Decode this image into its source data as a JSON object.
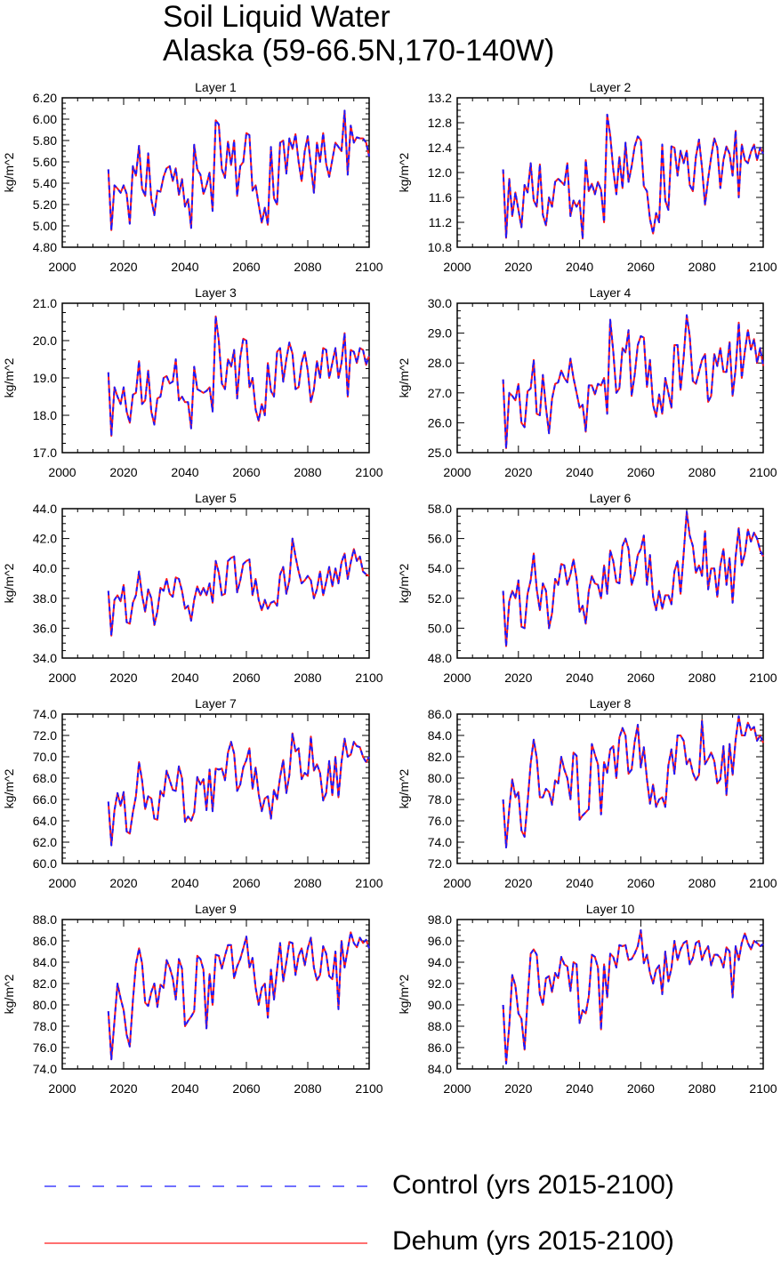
{
  "title": {
    "line1": "Soil Liquid Water",
    "line2": "Alaska (59-66.5N,170-140W)"
  },
  "colors": {
    "control": "#1a1aff",
    "dehum": "#ff1a1a",
    "axis": "#000000"
  },
  "legend": {
    "control_label": "Control (yrs 2015-2100)",
    "dehum_label": "Dehum (yrs 2015-2100)",
    "control_style": "dashed",
    "dehum_style": "solid"
  },
  "chart_data": [
    {
      "type": "line",
      "title": "Layer 1",
      "ylabel": "kg/m^2",
      "xlim": [
        2000,
        2100
      ],
      "ylim": [
        4.8,
        6.2
      ],
      "xticks": [
        "2000",
        "2020",
        "2040",
        "2060",
        "2080",
        "2100"
      ],
      "yticks": [
        "4.80",
        "5.00",
        "5.20",
        "5.40",
        "5.60",
        "5.80",
        "6.00",
        "6.20"
      ],
      "x_start": 2015,
      "series": [
        {
          "name": "Control (yrs 2015-2100)",
          "style": "dashed"
        },
        {
          "name": "Dehum (yrs 2015-2100)",
          "style": "solid"
        }
      ],
      "values": [
        5.53,
        4.96,
        5.38,
        5.35,
        5.31,
        5.38,
        5.3,
        5.02,
        5.56,
        5.47,
        5.75,
        5.35,
        5.28,
        5.68,
        5.25,
        5.1,
        5.33,
        5.32,
        5.46,
        5.54,
        5.56,
        5.42,
        5.54,
        5.29,
        5.44,
        5.18,
        5.25,
        4.98,
        5.76,
        5.53,
        5.48,
        5.3,
        5.38,
        5.5,
        5.14,
        5.99,
        5.95,
        5.53,
        5.45,
        5.79,
        5.57,
        5.8,
        5.28,
        5.56,
        5.6,
        5.87,
        5.85,
        5.33,
        5.38,
        5.2,
        5.03,
        5.17,
        5.01,
        5.74,
        5.26,
        5.2,
        5.78,
        5.8,
        5.49,
        5.82,
        5.72,
        5.86,
        5.6,
        5.42,
        5.7,
        5.84,
        5.56,
        5.31,
        5.78,
        5.6,
        5.87,
        5.58,
        5.46,
        5.62,
        5.78,
        5.74,
        5.7,
        6.08,
        5.48,
        5.94,
        5.78,
        5.83,
        5.82,
        5.82,
        5.78,
        5.65
      ]
    },
    {
      "type": "line",
      "title": "Layer 2",
      "ylabel": "kg/m^2",
      "xlim": [
        2000,
        2100
      ],
      "ylim": [
        10.8,
        13.2
      ],
      "xticks": [
        "2000",
        "2020",
        "2040",
        "2060",
        "2080",
        "2100"
      ],
      "yticks": [
        "10.8",
        "11.2",
        "11.6",
        "12.0",
        "12.4",
        "12.8",
        "13.2"
      ],
      "x_start": 2015,
      "series": [
        {
          "name": "Control (yrs 2015-2100)",
          "style": "dashed"
        },
        {
          "name": "Dehum (yrs 2015-2100)",
          "style": "solid"
        }
      ],
      "values": [
        12.05,
        10.95,
        11.9,
        11.3,
        11.68,
        11.4,
        11.12,
        11.8,
        11.68,
        12.15,
        11.55,
        11.45,
        12.13,
        11.32,
        11.15,
        11.6,
        11.45,
        11.85,
        11.9,
        11.85,
        11.8,
        12.15,
        11.3,
        11.55,
        11.45,
        11.55,
        10.94,
        12.2,
        11.7,
        11.82,
        11.65,
        11.85,
        11.72,
        11.2,
        12.93,
        12.6,
        12.05,
        11.65,
        12.25,
        11.75,
        12.48,
        11.85,
        12.1,
        12.42,
        12.58,
        12.52,
        11.78,
        11.7,
        11.25,
        11.02,
        11.35,
        11.2,
        12.45,
        11.55,
        11.4,
        12.42,
        12.4,
        11.95,
        12.35,
        12.15,
        12.35,
        11.8,
        11.7,
        12.25,
        12.53,
        12.08,
        11.48,
        11.9,
        12.25,
        12.55,
        12.4,
        11.75,
        12.2,
        12.42,
        12.3,
        11.95,
        12.67,
        11.6,
        12.45,
        12.2,
        12.15,
        12.33,
        12.45,
        12.2,
        12.4,
        12.3
      ]
    },
    {
      "type": "line",
      "title": "Layer 3",
      "ylabel": "kg/m^2",
      "xlim": [
        2000,
        2100
      ],
      "ylim": [
        17.0,
        21.0
      ],
      "xticks": [
        "2000",
        "2020",
        "2040",
        "2060",
        "2080",
        "2100"
      ],
      "yticks": [
        "17.0",
        "18.0",
        "19.0",
        "20.0",
        "21.0"
      ],
      "x_start": 2015,
      "series": [
        {
          "name": "Control (yrs 2015-2100)",
          "style": "dashed"
        },
        {
          "name": "Dehum (yrs 2015-2100)",
          "style": "solid"
        }
      ],
      "values": [
        19.15,
        17.45,
        18.75,
        18.5,
        18.3,
        18.75,
        18.1,
        17.8,
        18.55,
        18.6,
        19.45,
        18.3,
        18.4,
        19.2,
        18.1,
        17.75,
        18.45,
        18.5,
        19.0,
        19.05,
        18.85,
        18.9,
        19.5,
        18.4,
        18.5,
        18.35,
        18.35,
        17.65,
        19.3,
        18.7,
        18.65,
        18.6,
        18.65,
        18.75,
        18.1,
        20.65,
        20.0,
        18.85,
        18.7,
        19.5,
        19.3,
        19.75,
        18.45,
        19.55,
        20.05,
        20.0,
        18.75,
        19.0,
        18.15,
        17.85,
        18.3,
        18.0,
        19.4,
        18.65,
        18.5,
        19.7,
        19.8,
        18.9,
        19.5,
        19.95,
        19.65,
        18.7,
        18.75,
        19.4,
        19.7,
        19.2,
        18.35,
        18.7,
        19.45,
        19.0,
        19.8,
        19.75,
        19.0,
        19.4,
        19.8,
        19.0,
        19.4,
        20.2,
        18.5,
        19.75,
        19.7,
        19.4,
        19.8,
        19.75,
        19.35,
        19.6
      ]
    },
    {
      "type": "line",
      "title": "Layer 4",
      "ylabel": "kg/m^2",
      "xlim": [
        2000,
        2100
      ],
      "ylim": [
        25.0,
        30.0
      ],
      "xticks": [
        "2000",
        "2020",
        "2040",
        "2060",
        "2080",
        "2100"
      ],
      "yticks": [
        "25.0",
        "26.0",
        "27.0",
        "28.0",
        "29.0",
        "30.0"
      ],
      "x_start": 2015,
      "series": [
        {
          "name": "Control (yrs 2015-2100)",
          "style": "dashed"
        },
        {
          "name": "Dehum (yrs 2015-2100)",
          "style": "solid"
        }
      ],
      "values": [
        27.45,
        25.15,
        27.0,
        26.9,
        26.75,
        27.3,
        26.0,
        25.85,
        27.05,
        27.15,
        28.1,
        26.3,
        26.25,
        27.6,
        26.5,
        25.65,
        26.8,
        27.3,
        27.35,
        27.75,
        27.5,
        27.35,
        28.15,
        27.5,
        27.0,
        26.5,
        26.6,
        25.7,
        27.25,
        27.25,
        26.95,
        27.3,
        27.25,
        27.5,
        26.3,
        29.45,
        28.4,
        27.0,
        27.15,
        28.5,
        28.35,
        29.1,
        26.9,
        27.6,
        28.6,
        28.9,
        28.85,
        27.2,
        28.1,
        26.6,
        26.2,
        26.95,
        26.3,
        27.5,
        27.0,
        26.5,
        28.6,
        28.6,
        27.1,
        28.2,
        29.6,
        28.9,
        27.4,
        27.3,
        27.7,
        28.1,
        28.3,
        26.7,
        26.9,
        28.3,
        27.9,
        28.5,
        27.7,
        27.7,
        28.7,
        26.9,
        27.8,
        29.35,
        27.5,
        28.4,
        29.1,
        28.45,
        28.8,
        28.0,
        28.5,
        27.9
      ]
    },
    {
      "type": "line",
      "title": "Layer 5",
      "ylabel": "kg/m^2",
      "xlim": [
        2000,
        2100
      ],
      "ylim": [
        34.0,
        44.0
      ],
      "xticks": [
        "2000",
        "2020",
        "2040",
        "2060",
        "2080",
        "2100"
      ],
      "yticks": [
        "34.0",
        "36.0",
        "38.0",
        "40.0",
        "42.0",
        "44.0"
      ],
      "x_start": 2015,
      "series": [
        {
          "name": "Control (yrs 2015-2100)",
          "style": "dashed"
        },
        {
          "name": "Dehum (yrs 2015-2100)",
          "style": "solid"
        }
      ],
      "values": [
        38.5,
        35.5,
        37.9,
        38.2,
        37.8,
        38.9,
        36.4,
        36.3,
        37.7,
        38.2,
        39.8,
        38.2,
        37.1,
        38.6,
        38.0,
        36.2,
        37.1,
        38.7,
        38.5,
        39.3,
        38.3,
        38.1,
        39.4,
        39.3,
        38.5,
        37.3,
        37.5,
        36.5,
        37.9,
        38.8,
        38.2,
        38.7,
        38.2,
        39.0,
        37.7,
        40.5,
        39.7,
        38.2,
        38.3,
        40.5,
        40.7,
        40.8,
        38.4,
        39.2,
        40.3,
        40.5,
        40.6,
        38.2,
        39.3,
        37.9,
        37.2,
        37.9,
        37.3,
        37.7,
        37.8,
        37.5,
        39.6,
        40.1,
        38.3,
        39.2,
        42.0,
        40.8,
        39.8,
        39.0,
        39.2,
        39.5,
        39.2,
        38.0,
        38.6,
        39.8,
        38.2,
        39.1,
        40.1,
        38.8,
        40.0,
        39.0,
        40.4,
        41.0,
        39.3,
        40.4,
        41.3,
        40.5,
        40.8,
        39.8,
        39.6,
        39.5
      ]
    },
    {
      "type": "line",
      "title": "Layer 6",
      "ylabel": "kg/m^2",
      "xlim": [
        2000,
        2100
      ],
      "ylim": [
        48.0,
        58.0
      ],
      "xticks": [
        "2000",
        "2020",
        "2040",
        "2060",
        "2080",
        "2100"
      ],
      "yticks": [
        "48.0",
        "50.0",
        "52.0",
        "54.0",
        "56.0",
        "58.0"
      ],
      "x_start": 2015,
      "series": [
        {
          "name": "Control (yrs 2015-2100)",
          "style": "dashed"
        },
        {
          "name": "Dehum (yrs 2015-2100)",
          "style": "solid"
        }
      ],
      "values": [
        52.5,
        48.8,
        51.8,
        52.5,
        52.0,
        53.2,
        50.1,
        50.0,
        52.3,
        53.2,
        55.0,
        52.6,
        51.2,
        53.0,
        52.5,
        50.0,
        51.0,
        53.3,
        52.9,
        54.3,
        54.2,
        52.9,
        53.6,
        54.6,
        53.3,
        51.1,
        51.5,
        50.3,
        52.5,
        53.5,
        53.0,
        52.9,
        52.0,
        54.2,
        52.3,
        55.2,
        54.5,
        53.1,
        53.0,
        55.5,
        56.0,
        55.3,
        52.9,
        53.6,
        54.9,
        55.3,
        56.2,
        52.9,
        54.9,
        52.1,
        51.2,
        52.5,
        51.3,
        52.2,
        52.2,
        51.6,
        53.8,
        54.5,
        52.3,
        55.0,
        57.8,
        56.2,
        55.5,
        53.7,
        54.2,
        53.5,
        56.5,
        52.6,
        54.0,
        54.0,
        52.1,
        54.2,
        55.3,
        52.9,
        54.7,
        51.7,
        54.8,
        56.7,
        54.2,
        55.0,
        56.6,
        55.8,
        56.4,
        56.0,
        55.2,
        54.8
      ]
    },
    {
      "type": "line",
      "title": "Layer 7",
      "ylabel": "kg/m^2",
      "xlim": [
        2000,
        2100
      ],
      "ylim": [
        60.0,
        74.0
      ],
      "xticks": [
        "2000",
        "2020",
        "2040",
        "2060",
        "2080",
        "2100"
      ],
      "yticks": [
        "60.0",
        "62.0",
        "64.0",
        "66.0",
        "68.0",
        "70.0",
        "72.0",
        "74.0"
      ],
      "x_start": 2015,
      "series": [
        {
          "name": "Control (yrs 2015-2100)",
          "style": "dashed"
        },
        {
          "name": "Dehum (yrs 2015-2100)",
          "style": "solid"
        }
      ],
      "values": [
        65.8,
        61.7,
        65.0,
        66.6,
        65.4,
        66.7,
        63.0,
        62.8,
        64.8,
        66.3,
        69.5,
        67.8,
        65.1,
        66.3,
        66.1,
        64.2,
        64.1,
        66.8,
        66.3,
        68.7,
        67.8,
        66.9,
        66.8,
        69.1,
        68.0,
        63.9,
        64.4,
        64.0,
        64.8,
        68.1,
        67.4,
        67.9,
        65.0,
        68.8,
        64.9,
        68.9,
        68.8,
        68.9,
        67.8,
        70.4,
        71.4,
        70.3,
        66.8,
        67.4,
        69.0,
        69.7,
        70.8,
        67.0,
        69.0,
        66.5,
        64.9,
        66.1,
        66.3,
        64.2,
        66.9,
        66.0,
        68.1,
        69.7,
        66.6,
        68.3,
        72.2,
        70.5,
        70.8,
        67.9,
        68.5,
        68.2,
        71.9,
        68.7,
        69.3,
        68.5,
        65.9,
        66.6,
        69.6,
        66.4,
        70.0,
        66.2,
        69.5,
        71.7,
        70.0,
        70.2,
        71.4,
        71.0,
        70.9,
        70.0,
        69.5,
        70.0
      ]
    },
    {
      "type": "line",
      "title": "Layer 8",
      "ylabel": "kg/m^2",
      "xlim": [
        2000,
        2100
      ],
      "ylim": [
        72.0,
        86.0
      ],
      "xticks": [
        "2000",
        "2020",
        "2040",
        "2060",
        "2080",
        "2100"
      ],
      "yticks": [
        "72.0",
        "74.0",
        "76.0",
        "78.0",
        "80.0",
        "82.0",
        "84.0",
        "86.0"
      ],
      "x_start": 2015,
      "series": [
        {
          "name": "Control (yrs 2015-2100)",
          "style": "dashed"
        },
        {
          "name": "Dehum (yrs 2015-2100)",
          "style": "solid"
        }
      ],
      "values": [
        78.0,
        73.5,
        77.1,
        79.9,
        78.2,
        78.7,
        75.1,
        74.5,
        77.7,
        81.4,
        83.6,
        81.9,
        78.2,
        78.2,
        79.0,
        78.7,
        77.5,
        79.8,
        79.5,
        82.0,
        80.8,
        80.0,
        78.0,
        82.4,
        82.1,
        76.1,
        76.5,
        76.8,
        77.1,
        83.2,
        82.2,
        81.3,
        76.6,
        81.5,
        80.5,
        82.7,
        83.0,
        80.0,
        83.8,
        84.7,
        84.0,
        80.4,
        80.8,
        83.4,
        85.0,
        81.0,
        82.9,
        79.9,
        77.6,
        79.4,
        77.3,
        78.0,
        78.2,
        77.3,
        81.2,
        82.7,
        80.4,
        84.0,
        84.0,
        83.5,
        81.3,
        81.8,
        80.5,
        79.8,
        80.3,
        85.4,
        81.3,
        81.8,
        82.4,
        81.6,
        79.5,
        79.9,
        83.0,
        78.4,
        83.2,
        80.3,
        83.6,
        85.8,
        84.0,
        84.0,
        85.2,
        84.5,
        84.8,
        83.5,
        84.0,
        83.3
      ]
    },
    {
      "type": "line",
      "title": "Layer 9",
      "ylabel": "kg/m^2",
      "xlim": [
        2000,
        2100
      ],
      "ylim": [
        74.0,
        88.0
      ],
      "xticks": [
        "2000",
        "2020",
        "2040",
        "2060",
        "2080",
        "2100"
      ],
      "yticks": [
        "74.0",
        "76.0",
        "78.0",
        "80.0",
        "82.0",
        "84.0",
        "86.0",
        "88.0"
      ],
      "x_start": 2015,
      "series": [
        {
          "name": "Control (yrs 2015-2100)",
          "style": "dashed"
        },
        {
          "name": "Dehum (yrs 2015-2100)",
          "style": "solid"
        }
      ],
      "values": [
        79.4,
        74.9,
        78.5,
        82.0,
        80.6,
        79.5,
        77.2,
        76.1,
        80.4,
        83.8,
        85.3,
        83.9,
        80.2,
        79.9,
        81.2,
        82.0,
        79.8,
        81.9,
        81.6,
        84.2,
        83.5,
        82.5,
        80.5,
        84.3,
        83.4,
        78.0,
        78.5,
        78.9,
        79.4,
        84.6,
        84.3,
        83.3,
        77.8,
        82.9,
        80.0,
        84.7,
        84.6,
        83.4,
        84.6,
        85.6,
        85.6,
        82.5,
        83.6,
        84.3,
        85.3,
        86.4,
        83.5,
        84.4,
        81.6,
        80.0,
        81.6,
        82.0,
        78.8,
        83.3,
        80.5,
        83.3,
        85.8,
        82.2,
        84.0,
        85.9,
        85.8,
        82.8,
        84.6,
        85.3,
        83.7,
        85.3,
        86.3,
        83.5,
        82.3,
        82.8,
        85.5,
        84.8,
        82.7,
        82.4,
        85.0,
        79.6,
        86.0,
        83.5,
        85.2,
        86.8,
        85.8,
        85.4,
        86.3,
        85.8,
        86.1,
        85.3
      ]
    },
    {
      "type": "line",
      "title": "Layer 10",
      "ylabel": "kg/m^2",
      "xlim": [
        2000,
        2100
      ],
      "ylim": [
        84.0,
        98.0
      ],
      "xticks": [
        "2000",
        "2020",
        "2040",
        "2060",
        "2080",
        "2100"
      ],
      "yticks": [
        "84.0",
        "86.0",
        "88.0",
        "90.0",
        "92.0",
        "94.0",
        "96.0",
        "98.0"
      ],
      "x_start": 2015,
      "series": [
        {
          "name": "Control (yrs 2015-2100)",
          "style": "dashed"
        },
        {
          "name": "Dehum (yrs 2015-2100)",
          "style": "solid"
        }
      ],
      "values": [
        90.0,
        84.5,
        88.0,
        92.8,
        91.8,
        89.2,
        88.7,
        85.8,
        90.5,
        94.8,
        95.2,
        94.7,
        91.0,
        90.0,
        92.5,
        92.7,
        91.2,
        93.0,
        92.5,
        94.5,
        93.8,
        93.6,
        91.3,
        94.0,
        93.8,
        88.3,
        89.5,
        89.2,
        90.8,
        94.7,
        94.5,
        93.5,
        87.7,
        93.8,
        90.7,
        94.8,
        94.5,
        93.5,
        95.6,
        95.5,
        95.6,
        94.2,
        94.3,
        94.8,
        95.5,
        97.0,
        93.9,
        94.7,
        93.0,
        92.0,
        93.3,
        93.7,
        91.0,
        95.0,
        92.2,
        93.4,
        96.0,
        94.2,
        95.2,
        95.8,
        96.0,
        93.8,
        94.4,
        95.8,
        96.0,
        94.2,
        95.0,
        95.5,
        93.7,
        94.7,
        94.7,
        94.4,
        93.5,
        95.4,
        95.0,
        90.7,
        95.5,
        94.2,
        95.8,
        96.7,
        95.8,
        95.2,
        96.0,
        95.8,
        95.5,
        95.7
      ]
    }
  ]
}
